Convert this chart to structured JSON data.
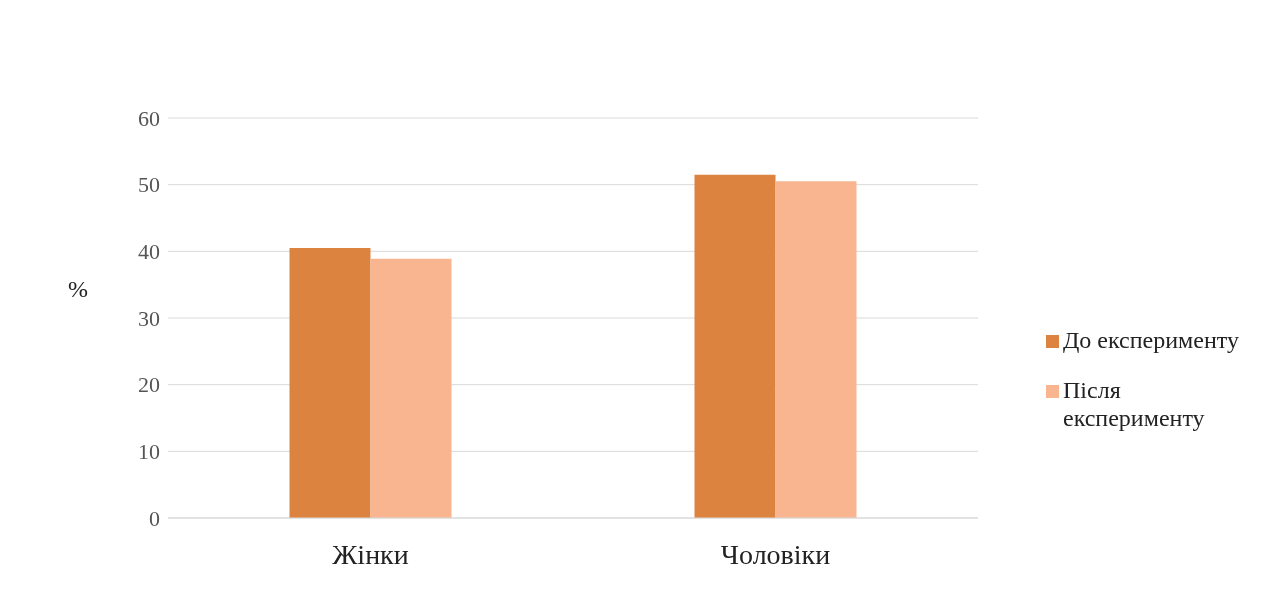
{
  "chart_data": {
    "type": "bar",
    "ylabel": "%",
    "categories": [
      "Жінки",
      "Чоловіки"
    ],
    "series": [
      {
        "name": "До експерименту",
        "color": "#dc843f",
        "values": [
          40.5,
          51.5
        ]
      },
      {
        "name": "Після експерименту",
        "color": "#f8b590",
        "values": [
          38.9,
          50.5
        ]
      }
    ],
    "ylim": [
      0,
      60
    ],
    "yticks": [
      0,
      10,
      20,
      30,
      40,
      50,
      60
    ],
    "grid": "y",
    "legend": "right"
  }
}
